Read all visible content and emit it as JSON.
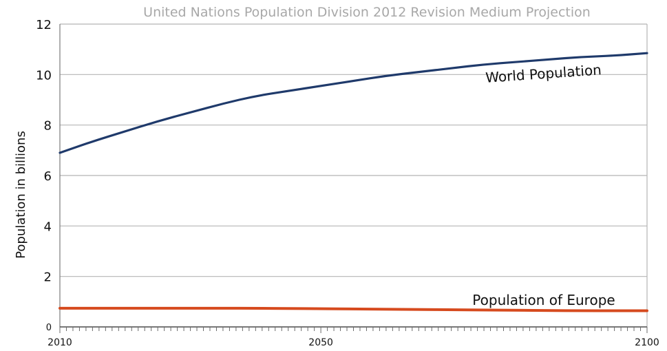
{
  "chart_data": {
    "type": "line",
    "title": "United Nations Population Division 2012 Revision Medium Projection",
    "xlabel": "",
    "ylabel": "Population in billions",
    "xlim": [
      2010,
      2100
    ],
    "ylim": [
      0,
      12
    ],
    "yticks": [
      0,
      2,
      4,
      6,
      8,
      10,
      12
    ],
    "xticks": [
      2010,
      2050,
      2100
    ],
    "grid": true,
    "x": [
      2010,
      2015,
      2020,
      2025,
      2030,
      2035,
      2040,
      2045,
      2050,
      2055,
      2060,
      2065,
      2070,
      2075,
      2080,
      2085,
      2090,
      2095,
      2100
    ],
    "series": [
      {
        "name": "World Population",
        "color": "#1f3a6b",
        "values": [
          6.9,
          7.35,
          7.75,
          8.15,
          8.5,
          8.85,
          9.15,
          9.35,
          9.55,
          9.75,
          9.95,
          10.1,
          10.25,
          10.4,
          10.5,
          10.6,
          10.7,
          10.75,
          10.85
        ]
      },
      {
        "name": "Population of Europe",
        "color": "#d64a1e",
        "values": [
          0.74,
          0.74,
          0.74,
          0.74,
          0.74,
          0.74,
          0.74,
          0.73,
          0.72,
          0.71,
          0.7,
          0.69,
          0.68,
          0.67,
          0.66,
          0.65,
          0.64,
          0.64,
          0.64
        ]
      }
    ]
  }
}
